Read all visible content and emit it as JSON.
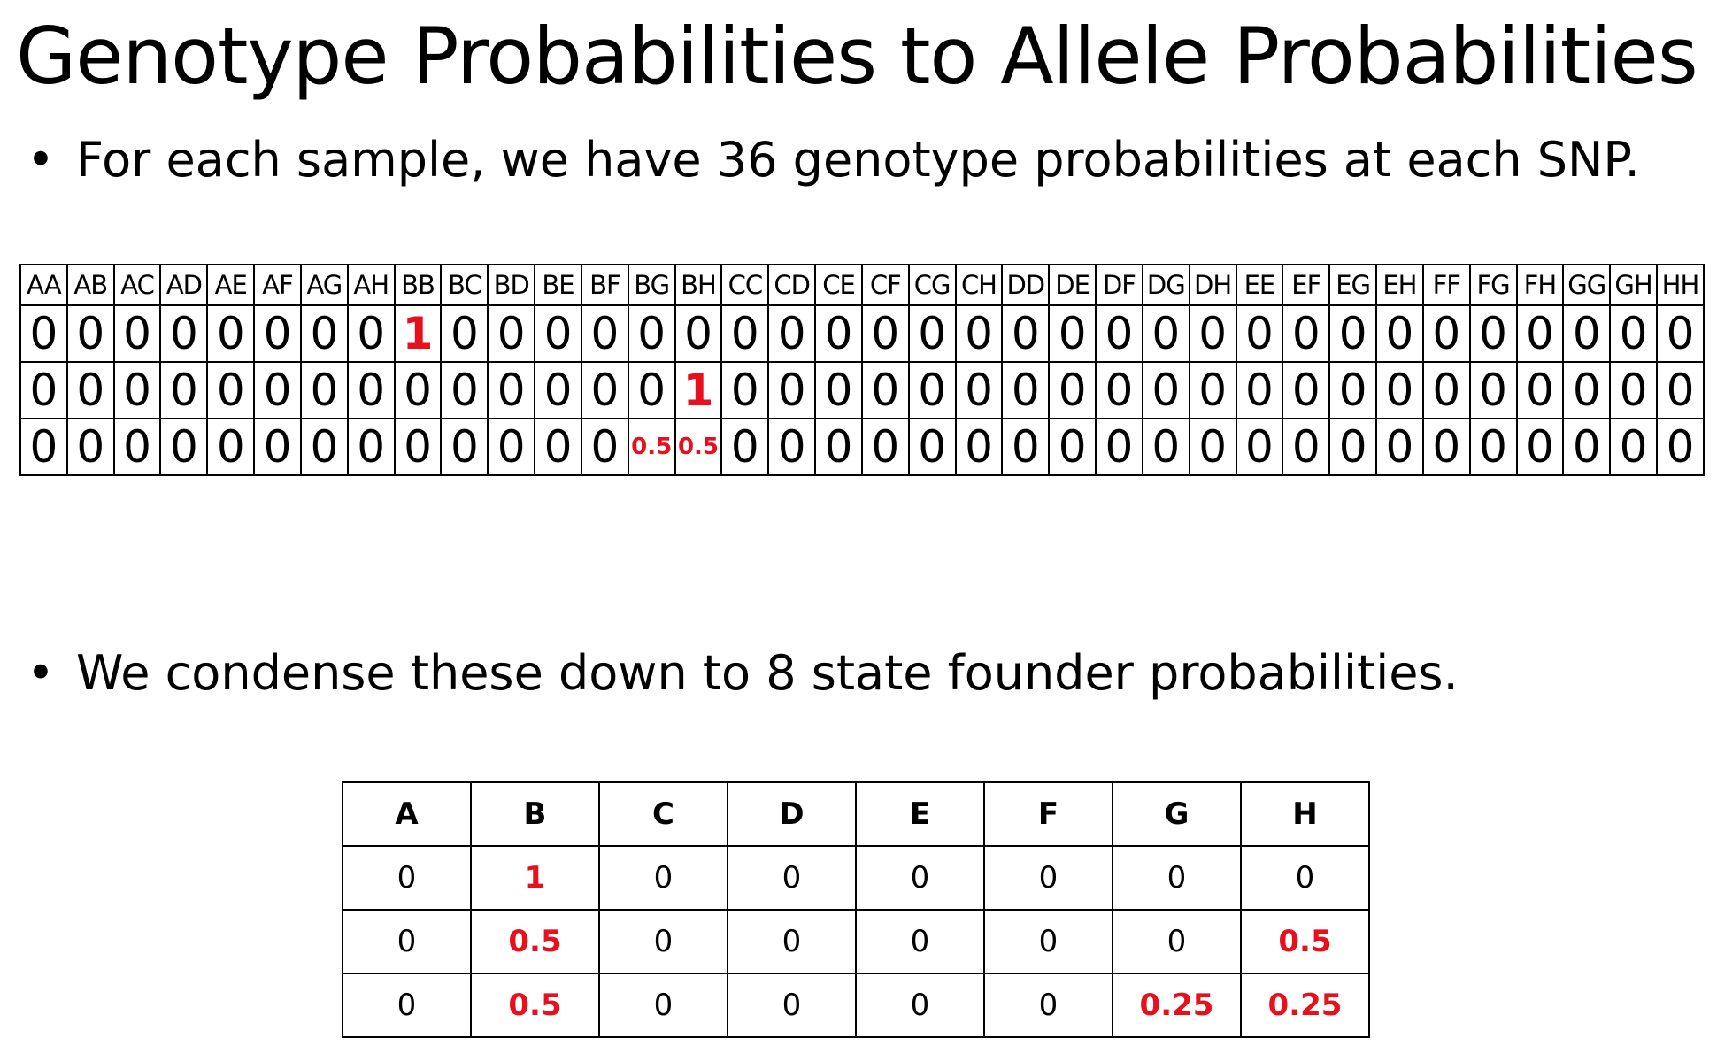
{
  "title": "Genotype Probabilities to Allele Probabilities",
  "bullets": [
    "For each sample, we have 36 genotype probabilities at each SNP.",
    "We condense these down to 8 state founder probabilities."
  ],
  "bullet_symbol": "•",
  "highlight_color": "#e8101c",
  "genotype_table": {
    "headers": [
      "AA",
      "AB",
      "AC",
      "AD",
      "AE",
      "AF",
      "AG",
      "AH",
      "BB",
      "BC",
      "BD",
      "BE",
      "BF",
      "BG",
      "BH",
      "CC",
      "CD",
      "CE",
      "CF",
      "CG",
      "CH",
      "DD",
      "DE",
      "DF",
      "DG",
      "DH",
      "EE",
      "EF",
      "EG",
      "EH",
      "FF",
      "FG",
      "FH",
      "GG",
      "GH",
      "HH"
    ],
    "rows": [
      [
        "0",
        "0",
        "0",
        "0",
        "0",
        "0",
        "0",
        "0",
        "1",
        "0",
        "0",
        "0",
        "0",
        "0",
        "0",
        "0",
        "0",
        "0",
        "0",
        "0",
        "0",
        "0",
        "0",
        "0",
        "0",
        "0",
        "0",
        "0",
        "0",
        "0",
        "0",
        "0",
        "0",
        "0",
        "0",
        "0"
      ],
      [
        "0",
        "0",
        "0",
        "0",
        "0",
        "0",
        "0",
        "0",
        "0",
        "0",
        "0",
        "0",
        "0",
        "0",
        "1",
        "0",
        "0",
        "0",
        "0",
        "0",
        "0",
        "0",
        "0",
        "0",
        "0",
        "0",
        "0",
        "0",
        "0",
        "0",
        "0",
        "0",
        "0",
        "0",
        "0",
        "0"
      ],
      [
        "0",
        "0",
        "0",
        "0",
        "0",
        "0",
        "0",
        "0",
        "0",
        "0",
        "0",
        "0",
        "0",
        "0.5",
        "0.5",
        "0",
        "0",
        "0",
        "0",
        "0",
        "0",
        "0",
        "0",
        "0",
        "0",
        "0",
        "0",
        "0",
        "0",
        "0",
        "0",
        "0",
        "0",
        "0",
        "0",
        "0"
      ]
    ],
    "highlighted": [
      [
        0,
        8
      ],
      [
        1,
        14
      ],
      [
        2,
        13
      ],
      [
        2,
        14
      ]
    ]
  },
  "allele_table": {
    "headers": [
      "A",
      "B",
      "C",
      "D",
      "E",
      "F",
      "G",
      "H"
    ],
    "rows": [
      [
        "0",
        "1",
        "0",
        "0",
        "0",
        "0",
        "0",
        "0"
      ],
      [
        "0",
        "0.5",
        "0",
        "0",
        "0",
        "0",
        "0",
        "0.5"
      ],
      [
        "0",
        "0.5",
        "0",
        "0",
        "0",
        "0",
        "0.25",
        "0.25"
      ]
    ],
    "highlighted": [
      [
        0,
        1
      ],
      [
        1,
        1
      ],
      [
        1,
        7
      ],
      [
        2,
        1
      ],
      [
        2,
        6
      ],
      [
        2,
        7
      ]
    ]
  }
}
